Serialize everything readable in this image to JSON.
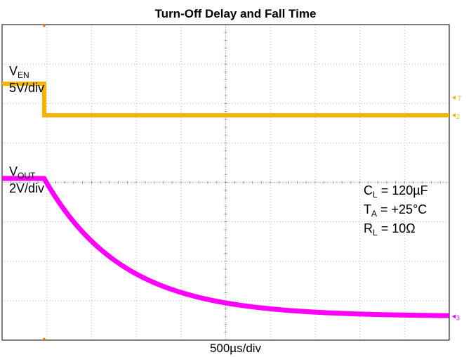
{
  "chart_data": {
    "type": "line",
    "title": "Turn-Off Delay and Fall Time",
    "xlabel": "500µs/div",
    "x_divisions": 10,
    "y_divisions": 8,
    "grid": true,
    "channels": [
      {
        "name_main": "V",
        "name_sub": "EN",
        "scale": "5V/div",
        "color": "#f2b400",
        "marker": "2",
        "segments": [
          {
            "x_div": [
              0,
              0.94
            ],
            "y_div": 1.5
          },
          {
            "x_div": [
              0.94,
              10
            ],
            "y_div": 2.3
          }
        ]
      },
      {
        "name_main": "V",
        "name_sub": "OUT",
        "scale": "2V/div",
        "color": "#ff00ff",
        "marker": "3",
        "decay": {
          "start_div": 0.94,
          "level_start_div": 3.9,
          "level_end_div": 7.4,
          "tau_div": 1.75
        }
      }
    ],
    "trigger_marker": "T",
    "annotations": [
      {
        "main": "C",
        "sub": "L",
        "rest": " = 120µF"
      },
      {
        "main": "T",
        "sub": "A",
        "rest": " = +25°C"
      },
      {
        "main": "R",
        "sub": "L",
        "rest": " = 10Ω"
      }
    ]
  },
  "colors": {
    "grid": "#b8b8b8",
    "frame": "#000000",
    "trigger": "#e87800"
  }
}
